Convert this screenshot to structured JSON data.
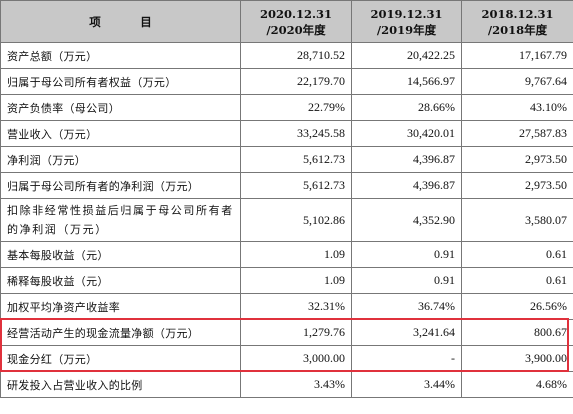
{
  "table": {
    "headers": [
      {
        "lines": [
          "项　目"
        ]
      },
      {
        "lines": [
          "2020.12.31",
          "/2020年度"
        ]
      },
      {
        "lines": [
          "2019.12.31",
          "/2019年度"
        ]
      },
      {
        "lines": [
          "2018.12.31",
          "/2018年度"
        ]
      }
    ],
    "rows": [
      {
        "label": "资产总额（万元）",
        "values": [
          "28,710.52",
          "20,422.25",
          "17,167.79"
        ]
      },
      {
        "label": "归属于母公司所有者权益（万元）",
        "values": [
          "22,179.70",
          "14,566.97",
          "9,767.64"
        ]
      },
      {
        "label": "资产负债率（母公司）",
        "values": [
          "22.79%",
          "28.66%",
          "43.10%"
        ]
      },
      {
        "label": "营业收入（万元）",
        "values": [
          "33,245.58",
          "30,420.01",
          "27,587.83"
        ]
      },
      {
        "label": "净利润（万元）",
        "values": [
          "5,612.73",
          "4,396.87",
          "2,973.50"
        ]
      },
      {
        "label": "归属于母公司所有者的净利润（万元）",
        "values": [
          "5,612.73",
          "4,396.87",
          "2,973.50"
        ]
      },
      {
        "label": "扣除非经常性损益后归属于母公司所有者的净利润（万元）",
        "values": [
          "5,102.86",
          "4,352.90",
          "3,580.07"
        ]
      },
      {
        "label": "基本每股收益（元）",
        "values": [
          "1.09",
          "0.91",
          "0.61"
        ]
      },
      {
        "label": "稀释每股收益（元）",
        "values": [
          "1.09",
          "0.91",
          "0.61"
        ]
      },
      {
        "label": "加权平均净资产收益率",
        "values": [
          "32.31%",
          "36.74%",
          "26.56%"
        ]
      },
      {
        "label": "经营活动产生的现金流量净额（万元）",
        "values": [
          "1,279.76",
          "3,241.64",
          "800.67"
        ]
      },
      {
        "label": "现金分红（万元）",
        "values": [
          "3,000.00",
          "-",
          "3,900.00"
        ]
      },
      {
        "label": "研发投入占营业收入的比例",
        "values": [
          "3.43%",
          "3.44%",
          "4.68%"
        ]
      }
    ]
  },
  "highlight": {
    "color": "#e0313c",
    "rows": [
      10,
      11
    ]
  }
}
